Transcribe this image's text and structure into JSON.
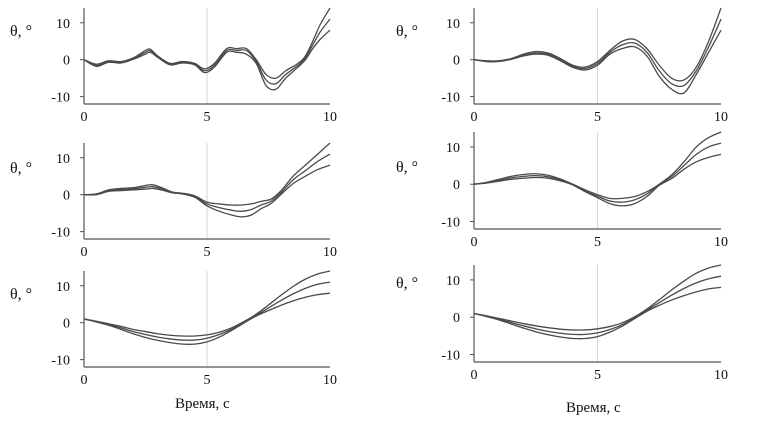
{
  "figure": {
    "x_axis_label": "Время, с"
  },
  "chart_data": [
    {
      "type": "line",
      "panel": "top-left",
      "ylabel": "θ, °",
      "xlim": [
        0,
        10
      ],
      "ylim": [
        -12,
        14
      ],
      "xticks": [
        0,
        5,
        10
      ],
      "yticks": [
        -10,
        0,
        10
      ],
      "grid": "vertical-only",
      "x": [
        0,
        0.5,
        1,
        1.5,
        2,
        2.5,
        2.7,
        3,
        3.5,
        4,
        4.5,
        4.9,
        5.3,
        5.8,
        6.2,
        6.6,
        7,
        7.4,
        7.8,
        8.2,
        8.7,
        9,
        9.3,
        9.6,
        10
      ],
      "series": [
        {
          "name": "upper",
          "values": [
            0,
            -1.2,
            -0.3,
            -0.5,
            0.5,
            2.5,
            2.8,
            1.0,
            -1.0,
            -0.5,
            -1.0,
            -2.5,
            -1.0,
            3.0,
            3.0,
            3.0,
            0.0,
            -4.0,
            -5.0,
            -3.0,
            -1.0,
            1.0,
            5.0,
            9.5,
            14.0
          ]
        },
        {
          "name": "middle",
          "values": [
            0,
            -1.5,
            -0.5,
            -0.7,
            0.3,
            2.0,
            2.4,
            0.8,
            -1.2,
            -0.7,
            -1.2,
            -3.0,
            -1.5,
            2.5,
            2.5,
            2.5,
            -0.5,
            -5.5,
            -6.5,
            -4.0,
            -1.5,
            0.5,
            4.0,
            7.5,
            11.0
          ]
        },
        {
          "name": "lower",
          "values": [
            0,
            -1.8,
            -0.7,
            -0.9,
            0.1,
            1.5,
            2.0,
            0.6,
            -1.4,
            -0.9,
            -1.4,
            -3.5,
            -2.0,
            2.0,
            2.0,
            1.5,
            -1.0,
            -7.0,
            -8.0,
            -5.0,
            -2.0,
            0.0,
            3.0,
            5.5,
            8.0
          ]
        }
      ]
    },
    {
      "type": "line",
      "panel": "top-right",
      "ylabel": "θ, °",
      "xlim": [
        0,
        10
      ],
      "ylim": [
        -12,
        14
      ],
      "xticks": [
        0,
        5,
        10
      ],
      "yticks": [
        -10,
        0,
        10
      ],
      "grid": "vertical-only",
      "x": [
        0,
        0.5,
        1,
        1.5,
        2,
        2.5,
        3,
        3.5,
        4,
        4.5,
        5,
        5.5,
        6,
        6.5,
        7,
        7.5,
        8,
        8.5,
        9,
        9.5,
        10
      ],
      "series": [
        {
          "name": "upper",
          "values": [
            0,
            -0.3,
            -0.3,
            0.3,
            1.5,
            2.2,
            1.8,
            0.3,
            -1.5,
            -2.0,
            -0.5,
            2.5,
            5.0,
            5.5,
            3.0,
            -1.5,
            -5.0,
            -5.5,
            -2.0,
            5.0,
            14.0
          ]
        },
        {
          "name": "middle",
          "values": [
            0,
            -0.4,
            -0.4,
            0.2,
            1.2,
            1.8,
            1.5,
            0.0,
            -1.8,
            -2.4,
            -1.0,
            2.0,
            4.0,
            4.5,
            2.0,
            -3.0,
            -6.5,
            -7.0,
            -3.0,
            3.5,
            11.0
          ]
        },
        {
          "name": "lower",
          "values": [
            0,
            -0.5,
            -0.5,
            0.1,
            1.0,
            1.5,
            1.2,
            -0.3,
            -2.1,
            -2.8,
            -1.5,
            1.5,
            3.0,
            3.5,
            1.0,
            -4.5,
            -8.0,
            -9.0,
            -4.0,
            2.0,
            8.0
          ]
        }
      ]
    },
    {
      "type": "line",
      "panel": "middle-left",
      "ylabel": "θ, °",
      "xlim": [
        0,
        10
      ],
      "ylim": [
        -12,
        14
      ],
      "xticks": [
        0,
        5,
        10
      ],
      "yticks": [
        -10,
        0,
        10
      ],
      "grid": "vertical-only",
      "x": [
        0,
        0.5,
        1,
        1.5,
        2,
        2.5,
        2.8,
        3.2,
        3.6,
        4,
        4.5,
        5,
        5.5,
        6,
        6.4,
        6.8,
        7.2,
        7.6,
        8,
        8.5,
        9,
        9.5,
        10
      ],
      "series": [
        {
          "name": "upper",
          "values": [
            0,
            0.2,
            1.3,
            1.7,
            1.9,
            2.5,
            2.7,
            1.8,
            0.7,
            0.4,
            -0.3,
            -2.0,
            -2.5,
            -2.8,
            -2.8,
            -2.5,
            -1.8,
            -1.2,
            1.0,
            5.0,
            8.0,
            11.0,
            14.0
          ]
        },
        {
          "name": "middle",
          "values": [
            0,
            0.1,
            1.1,
            1.4,
            1.6,
            2.0,
            2.2,
            1.5,
            0.6,
            0.3,
            -0.5,
            -2.5,
            -3.5,
            -4.2,
            -4.5,
            -4.0,
            -2.8,
            -1.8,
            0.5,
            4.0,
            6.5,
            9.0,
            11.0
          ]
        },
        {
          "name": "lower",
          "values": [
            0,
            0.0,
            0.9,
            1.1,
            1.3,
            1.5,
            1.7,
            1.2,
            0.5,
            0.2,
            -0.7,
            -3.0,
            -4.5,
            -5.5,
            -6.0,
            -5.5,
            -3.8,
            -2.4,
            0.0,
            3.0,
            5.0,
            6.8,
            8.0
          ]
        }
      ]
    },
    {
      "type": "line",
      "panel": "middle-right",
      "ylabel": "θ, °",
      "xlim": [
        0,
        10
      ],
      "ylim": [
        -12,
        14
      ],
      "xticks": [
        0,
        5,
        10
      ],
      "yticks": [
        -10,
        0,
        10
      ],
      "grid": "vertical-only",
      "x": [
        0,
        0.5,
        1,
        1.5,
        2,
        2.5,
        3,
        3.5,
        4,
        4.5,
        5,
        5.5,
        6,
        6.5,
        7,
        7.5,
        8,
        8.5,
        9,
        9.5,
        10
      ],
      "series": [
        {
          "name": "upper",
          "values": [
            0,
            0.5,
            1.3,
            2.1,
            2.6,
            2.8,
            2.4,
            1.4,
            0.0,
            -1.5,
            -2.8,
            -3.8,
            -3.8,
            -3.3,
            -2.0,
            0.0,
            2.5,
            6.0,
            10.0,
            12.5,
            14.0
          ]
        },
        {
          "name": "middle",
          "values": [
            0,
            0.4,
            1.0,
            1.7,
            2.1,
            2.3,
            2.0,
            1.1,
            0.0,
            -1.8,
            -3.2,
            -4.5,
            -4.8,
            -4.2,
            -2.6,
            0.0,
            2.0,
            5.0,
            8.0,
            10.0,
            11.0
          ]
        },
        {
          "name": "lower",
          "values": [
            0,
            0.3,
            0.8,
            1.3,
            1.6,
            1.8,
            1.6,
            0.9,
            -0.2,
            -2.0,
            -3.6,
            -5.2,
            -5.8,
            -5.2,
            -3.3,
            -0.3,
            1.5,
            4.0,
            6.0,
            7.2,
            8.0
          ]
        }
      ]
    },
    {
      "type": "line",
      "panel": "bottom-left",
      "ylabel": "θ, °",
      "xlim": [
        0,
        10
      ],
      "ylim": [
        -12,
        14
      ],
      "xticks": [
        0,
        5,
        10
      ],
      "yticks": [
        -10,
        0,
        10
      ],
      "grid": "vertical-only",
      "x": [
        0,
        0.5,
        1,
        1.5,
        2,
        2.5,
        3,
        3.5,
        4,
        4.5,
        5,
        5.5,
        6,
        6.5,
        7,
        7.5,
        8,
        8.5,
        9,
        9.5,
        10
      ],
      "series": [
        {
          "name": "upper",
          "values": [
            1.0,
            0.4,
            -0.3,
            -1.0,
            -1.8,
            -2.4,
            -3.0,
            -3.4,
            -3.6,
            -3.6,
            -3.3,
            -2.6,
            -1.4,
            0.3,
            2.3,
            4.8,
            7.4,
            9.8,
            11.8,
            13.2,
            14.0
          ]
        },
        {
          "name": "middle",
          "values": [
            1.0,
            0.3,
            -0.5,
            -1.4,
            -2.4,
            -3.2,
            -3.9,
            -4.4,
            -4.7,
            -4.7,
            -4.2,
            -3.2,
            -1.8,
            0.1,
            2.0,
            4.0,
            6.0,
            7.8,
            9.3,
            10.4,
            11.0
          ]
        },
        {
          "name": "lower",
          "values": [
            1.0,
            0.2,
            -0.7,
            -1.8,
            -3.0,
            -4.0,
            -4.8,
            -5.4,
            -5.8,
            -5.8,
            -5.2,
            -3.9,
            -2.1,
            -0.1,
            1.8,
            3.3,
            4.7,
            5.9,
            6.9,
            7.6,
            8.0
          ]
        }
      ]
    },
    {
      "type": "line",
      "panel": "bottom-right",
      "ylabel": "θ, °",
      "xlim": [
        0,
        10
      ],
      "ylim": [
        -12,
        14
      ],
      "xticks": [
        0,
        5,
        10
      ],
      "yticks": [
        -10,
        0,
        10
      ],
      "grid": "vertical-only",
      "x": [
        0,
        0.5,
        1,
        1.5,
        2,
        2.5,
        3,
        3.5,
        4,
        4.5,
        5,
        5.5,
        6,
        6.5,
        7,
        7.5,
        8,
        8.5,
        9,
        9.5,
        10
      ],
      "series": [
        {
          "name": "upper",
          "values": [
            1.0,
            0.4,
            -0.3,
            -1.0,
            -1.7,
            -2.3,
            -2.8,
            -3.2,
            -3.4,
            -3.4,
            -3.1,
            -2.5,
            -1.5,
            0.1,
            2.2,
            4.7,
            7.3,
            9.7,
            11.8,
            13.2,
            14.0
          ]
        },
        {
          "name": "middle",
          "values": [
            1.0,
            0.3,
            -0.5,
            -1.4,
            -2.3,
            -3.1,
            -3.8,
            -4.3,
            -4.6,
            -4.6,
            -4.2,
            -3.3,
            -2.0,
            -0.1,
            1.9,
            3.9,
            5.9,
            7.7,
            9.2,
            10.3,
            11.0
          ]
        },
        {
          "name": "lower",
          "values": [
            1.0,
            0.2,
            -0.7,
            -1.8,
            -2.9,
            -3.9,
            -4.7,
            -5.3,
            -5.7,
            -5.7,
            -5.2,
            -4.0,
            -2.4,
            -0.4,
            1.6,
            3.2,
            4.6,
            5.8,
            6.8,
            7.6,
            8.0
          ]
        }
      ]
    }
  ]
}
